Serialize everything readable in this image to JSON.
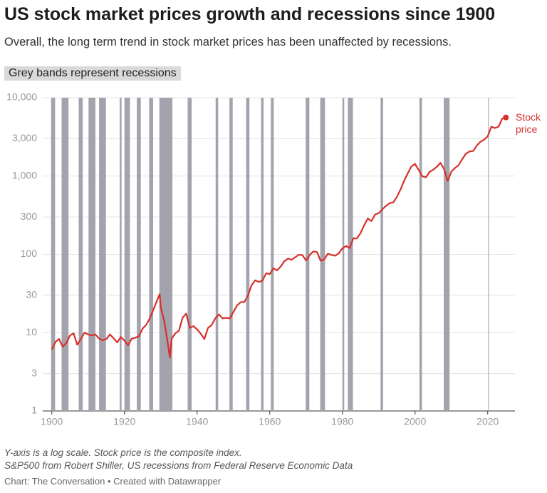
{
  "chart_data": {
    "type": "line",
    "title": "US stock market prices growth and recessions since 1900",
    "subtitle": "Overall, the long term trend in stock market prices has been unaffected by recessions.",
    "recession_label": "Grey bands represent recessions",
    "notes": [
      "Y-axis is a log scale. Stock price is the composite index.",
      "S&P500 from Robert Shiller, US recessions from Federal Reserve Economic Data"
    ],
    "credit": "Chart: The Conversation • Created with Datawrapper",
    "log_y": true,
    "grid": true,
    "xlim": [
      1897.5,
      2027.5
    ],
    "xticks": [
      1900,
      1920,
      1940,
      1960,
      1980,
      2000,
      2020
    ],
    "ylim": [
      1,
      10000
    ],
    "yticks": [
      1,
      3,
      10,
      30,
      100,
      300,
      {
        "value": 1000,
        "label": "1,000"
      },
      {
        "value": 3000,
        "label": "3,000"
      },
      {
        "value": 10000,
        "label": "10,000"
      }
    ],
    "recession_color": "#a3a3ae",
    "recessions": [
      [
        1899.8,
        1900.9
      ],
      [
        1902.7,
        1904.6
      ],
      [
        1907.4,
        1908.5
      ],
      [
        1910.1,
        1912.0
      ],
      [
        1913.0,
        1914.9
      ],
      [
        1918.7,
        1919.2
      ],
      [
        1920.0,
        1921.5
      ],
      [
        1923.4,
        1924.5
      ],
      [
        1926.8,
        1927.9
      ],
      [
        1929.6,
        1933.2
      ],
      [
        1937.4,
        1938.5
      ],
      [
        1945.1,
        1945.8
      ],
      [
        1948.9,
        1949.8
      ],
      [
        1953.5,
        1954.4
      ],
      [
        1957.6,
        1958.3
      ],
      [
        1960.3,
        1961.1
      ],
      [
        1969.9,
        1970.9
      ],
      [
        1973.9,
        1975.2
      ],
      [
        1980.0,
        1980.5
      ],
      [
        1981.5,
        1982.9
      ],
      [
        1990.5,
        1991.2
      ],
      [
        2001.2,
        2001.9
      ],
      [
        2007.9,
        2009.5
      ],
      [
        2020.1,
        2020.3
      ]
    ],
    "x": [
      1900,
      1901,
      1902,
      1903,
      1904,
      1905,
      1906,
      1907,
      1908,
      1909,
      1910,
      1911,
      1912,
      1913,
      1914,
      1915,
      1916,
      1917,
      1918,
      1919,
      1920,
      1921,
      1922,
      1923,
      1924,
      1925,
      1926,
      1927,
      1928,
      1929,
      1929.7,
      1930,
      1931,
      1932,
      1932.5,
      1933,
      1934,
      1935,
      1936,
      1937,
      1938,
      1939,
      1940,
      1941,
      1942,
      1943,
      1944,
      1945,
      1946,
      1947,
      1948,
      1949,
      1950,
      1951,
      1952,
      1953,
      1954,
      1955,
      1956,
      1957,
      1958,
      1959,
      1960,
      1961,
      1962,
      1963,
      1964,
      1965,
      1966,
      1967,
      1968,
      1969,
      1970,
      1971,
      1972,
      1973,
      1974,
      1975,
      1976,
      1977,
      1978,
      1979,
      1980,
      1981,
      1982,
      1983,
      1984,
      1985,
      1986,
      1987,
      1988,
      1989,
      1990,
      1991,
      1992,
      1993,
      1994,
      1995,
      1996,
      1997,
      1998,
      1999,
      2000,
      2001,
      2002,
      2003,
      2004,
      2005,
      2006,
      2007,
      2008,
      2009,
      2010,
      2011,
      2012,
      2013,
      2014,
      2015,
      2016,
      2017,
      2018,
      2019,
      2020,
      2021,
      2022,
      2023,
      2024,
      2025
    ],
    "series": [
      {
        "name": "Stock price",
        "color": "#d7302a",
        "values": [
          6.1,
          7.6,
          8.3,
          6.6,
          7.4,
          9.2,
          9.8,
          7.0,
          8.3,
          10,
          9.5,
          9.2,
          9.5,
          8.4,
          8.0,
          8.3,
          9.5,
          8.5,
          7.5,
          8.8,
          7.9,
          6.9,
          8.4,
          8.6,
          9.0,
          11.3,
          12.6,
          15.3,
          19.9,
          26,
          31,
          21,
          13.7,
          6.9,
          4.8,
          8.4,
          9.8,
          10.6,
          15.5,
          17.5,
          11.5,
          12.1,
          11,
          9.7,
          8.3,
          11.5,
          12.5,
          15.2,
          17.1,
          15.2,
          15.5,
          15.2,
          18.4,
          22.3,
          24.5,
          24.7,
          29.7,
          40.5,
          46.6,
          44.4,
          46.2,
          57.4,
          55.8,
          66.3,
          62.4,
          69.9,
          81.4,
          88.2,
          85.3,
          91.9,
          98.7,
          97.8,
          83.2,
          98.3,
          109,
          107,
          82.9,
          86.2,
          102,
          98.2,
          96,
          103,
          119,
          128,
          120,
          160,
          160,
          187,
          236,
          287,
          266,
          323,
          335,
          376,
          416,
          451,
          460,
          542,
          671,
          873,
          1085,
          1327,
          1427,
          1194,
          993,
          965,
          1130,
          1207,
          1310,
          1477,
          1220,
          865,
          1140,
          1268,
          1379,
          1643,
          1931,
          2061,
          2092,
          2449,
          2746,
          2913,
          3218,
          4267,
          4099,
          4285,
          5428,
          5600
        ]
      }
    ]
  }
}
